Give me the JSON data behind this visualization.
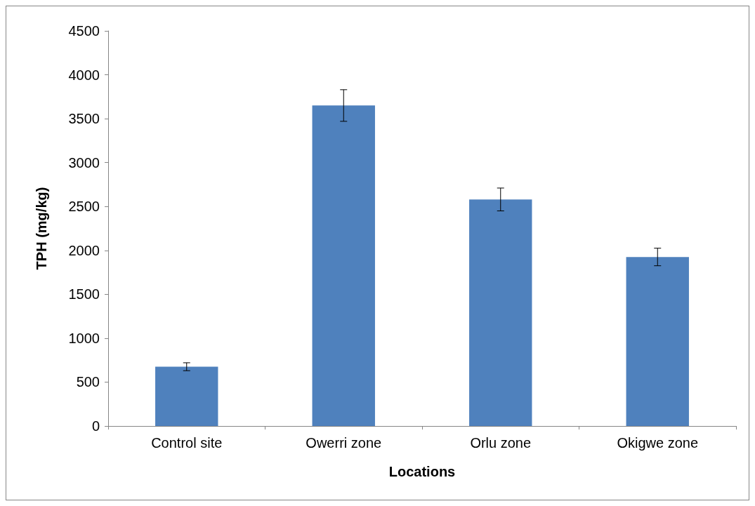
{
  "chart_data": {
    "type": "bar",
    "xlabel": "Locations",
    "ylabel": "TPH (mg/kg)",
    "categories": [
      "Control site",
      "Owerri zone",
      "Orlu zone",
      "Okigwe zone"
    ],
    "values": [
      675,
      3650,
      2580,
      1925
    ],
    "errors": [
      45,
      180,
      130,
      100
    ],
    "color": "#4f81bd",
    "ylim": [
      0,
      4500
    ],
    "yticks": [
      0,
      500,
      1000,
      1500,
      2000,
      2500,
      3000,
      3500,
      4000,
      4500
    ],
    "grid": false
  }
}
